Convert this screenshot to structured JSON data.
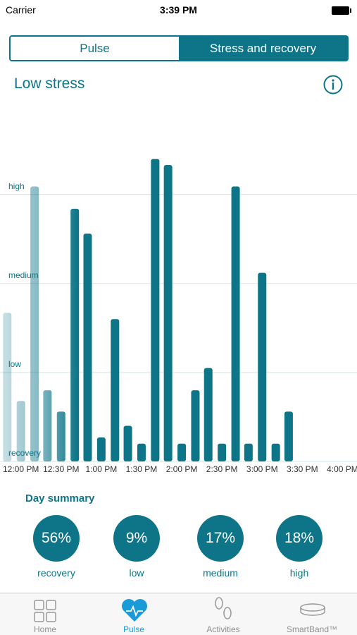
{
  "status_bar": {
    "carrier": "Carrier",
    "time": "3:39 PM"
  },
  "segments": [
    "Pulse",
    "Stress and recovery"
  ],
  "heading": "Low stress",
  "chart_data": {
    "type": "bar",
    "x": [
      11.83,
      12,
      12.17,
      12.33,
      12.5,
      12.67,
      12.83,
      13,
      13.17,
      13.33,
      13.5,
      13.67,
      13.83,
      14,
      14.17,
      14.33,
      14.5,
      14.67,
      14.83,
      15,
      15.17,
      15.33
    ],
    "values": [
      1.67,
      0.68,
      3.09,
      0.8,
      0.56,
      2.84,
      2.56,
      0.27,
      1.6,
      0.4,
      0.2,
      3.4,
      3.33,
      0.2,
      0.8,
      1.05,
      0.2,
      3.09,
      0.2,
      2.12,
      0.2,
      0.56
    ],
    "color": "#0e7589",
    "xlim": [
      11.74,
      16.18
    ],
    "ylim": [
      0,
      3.6
    ],
    "xticks": [
      {
        "value": 12,
        "label": "12:00 PM"
      },
      {
        "value": 12.5,
        "label": "12:30 PM"
      },
      {
        "value": 13,
        "label": "1:00 PM"
      },
      {
        "value": 13.5,
        "label": "1:30 PM"
      },
      {
        "value": 14,
        "label": "2:00 PM"
      },
      {
        "value": 14.5,
        "label": "2:30 PM"
      },
      {
        "value": 15,
        "label": "3:00 PM"
      },
      {
        "value": 15.5,
        "label": "3:30 PM"
      },
      {
        "value": 16,
        "label": "4:00 PM"
      }
    ],
    "yticks": [
      {
        "value": 0,
        "label": "recovery"
      },
      {
        "value": 1,
        "label": "low"
      },
      {
        "value": 2,
        "label": "medium"
      },
      {
        "value": 3,
        "label": "high"
      }
    ],
    "grid": true
  },
  "day_summary": {
    "title": "Day summary",
    "items": [
      {
        "value": "56%",
        "label": "recovery"
      },
      {
        "value": "9%",
        "label": "low"
      },
      {
        "value": "17%",
        "label": "medium"
      },
      {
        "value": "18%",
        "label": "high"
      }
    ]
  },
  "tab_bar": [
    "Home",
    "Pulse",
    "Activities",
    "SmartBand™"
  ]
}
